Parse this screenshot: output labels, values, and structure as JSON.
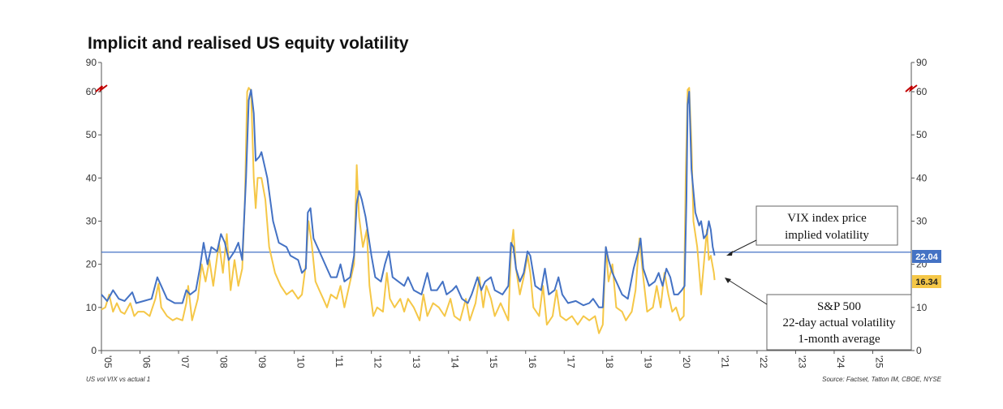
{
  "chart_data": {
    "type": "line",
    "title": "Implicit and realised US equity volatility",
    "footnote_left": "US vol VIX vs actual 1",
    "footnote_right": "Source: Factset, Tatton IM, CBOE, NYSE",
    "y_ticks": [
      "0",
      "10",
      "20",
      "30",
      "40",
      "50",
      "60",
      "90"
    ],
    "y_ticks_right": [
      "0",
      "10",
      "20",
      "30",
      "40",
      "50",
      "60",
      "90"
    ],
    "ylim": [
      0,
      90
    ],
    "y_axis_break_between": [
      60,
      90
    ],
    "x_ticks": [
      "'05",
      "'06",
      "'07",
      "'08",
      "'09",
      "'10",
      "'11",
      "'12",
      "'13",
      "'14",
      "'15",
      "'16",
      "'17",
      "'18",
      "'19",
      "'20",
      "'21",
      "'22",
      "'23",
      "'24",
      "'25"
    ],
    "xlim": [
      2005,
      2026
    ],
    "reference_line": {
      "value": 22.8,
      "color": "#4472C4"
    },
    "series": [
      {
        "name": "VIX index price implied volatility",
        "color": "#4472C4",
        "last_value_label": "22.04",
        "points": [
          [
            2005.0,
            13
          ],
          [
            2005.15,
            11.5
          ],
          [
            2005.3,
            14
          ],
          [
            2005.45,
            12
          ],
          [
            2005.6,
            11.5
          ],
          [
            2005.8,
            13.5
          ],
          [
            2005.9,
            11
          ],
          [
            2006.1,
            11.5
          ],
          [
            2006.3,
            12
          ],
          [
            2006.45,
            17
          ],
          [
            2006.55,
            15
          ],
          [
            2006.7,
            12
          ],
          [
            2006.9,
            11
          ],
          [
            2007.1,
            11
          ],
          [
            2007.2,
            14
          ],
          [
            2007.3,
            13
          ],
          [
            2007.45,
            14
          ],
          [
            2007.55,
            19
          ],
          [
            2007.65,
            25
          ],
          [
            2007.75,
            20
          ],
          [
            2007.85,
            24
          ],
          [
            2008.0,
            23
          ],
          [
            2008.1,
            27
          ],
          [
            2008.2,
            25
          ],
          [
            2008.3,
            21
          ],
          [
            2008.45,
            23
          ],
          [
            2008.55,
            25
          ],
          [
            2008.65,
            21
          ],
          [
            2008.75,
            40
          ],
          [
            2008.82,
            58
          ],
          [
            2008.88,
            62
          ],
          [
            2008.95,
            55
          ],
          [
            2009.0,
            44
          ],
          [
            2009.1,
            45
          ],
          [
            2009.15,
            46
          ],
          [
            2009.3,
            40
          ],
          [
            2009.45,
            30
          ],
          [
            2009.6,
            25
          ],
          [
            2009.8,
            24
          ],
          [
            2009.9,
            22
          ],
          [
            2010.1,
            21
          ],
          [
            2010.2,
            18
          ],
          [
            2010.3,
            19
          ],
          [
            2010.35,
            32
          ],
          [
            2010.42,
            33
          ],
          [
            2010.5,
            26
          ],
          [
            2010.6,
            24
          ],
          [
            2010.7,
            22
          ],
          [
            2010.85,
            19
          ],
          [
            2010.95,
            17
          ],
          [
            2011.1,
            17
          ],
          [
            2011.2,
            20
          ],
          [
            2011.3,
            16
          ],
          [
            2011.45,
            17
          ],
          [
            2011.55,
            22
          ],
          [
            2011.62,
            34
          ],
          [
            2011.68,
            37
          ],
          [
            2011.75,
            35
          ],
          [
            2011.85,
            31
          ],
          [
            2011.95,
            25
          ],
          [
            2012.0,
            22
          ],
          [
            2012.1,
            17
          ],
          [
            2012.25,
            16
          ],
          [
            2012.35,
            20
          ],
          [
            2012.45,
            23
          ],
          [
            2012.55,
            17
          ],
          [
            2012.7,
            16
          ],
          [
            2012.85,
            15
          ],
          [
            2012.95,
            17
          ],
          [
            2013.1,
            14
          ],
          [
            2013.3,
            13
          ],
          [
            2013.45,
            18
          ],
          [
            2013.55,
            14
          ],
          [
            2013.7,
            14
          ],
          [
            2013.85,
            16
          ],
          [
            2013.95,
            13
          ],
          [
            2014.1,
            14
          ],
          [
            2014.2,
            15
          ],
          [
            2014.35,
            12
          ],
          [
            2014.5,
            11
          ],
          [
            2014.6,
            13
          ],
          [
            2014.75,
            17
          ],
          [
            2014.85,
            14
          ],
          [
            2014.95,
            16
          ],
          [
            2015.1,
            17
          ],
          [
            2015.2,
            14
          ],
          [
            2015.4,
            13
          ],
          [
            2015.55,
            15
          ],
          [
            2015.62,
            25
          ],
          [
            2015.68,
            24
          ],
          [
            2015.75,
            19
          ],
          [
            2015.85,
            16
          ],
          [
            2015.95,
            18
          ],
          [
            2016.05,
            23
          ],
          [
            2016.12,
            22
          ],
          [
            2016.25,
            15
          ],
          [
            2016.4,
            14
          ],
          [
            2016.5,
            19
          ],
          [
            2016.6,
            13
          ],
          [
            2016.75,
            14
          ],
          [
            2016.85,
            17
          ],
          [
            2016.95,
            13
          ],
          [
            2017.1,
            11
          ],
          [
            2017.3,
            11.5
          ],
          [
            2017.5,
            10.5
          ],
          [
            2017.65,
            11
          ],
          [
            2017.75,
            12
          ],
          [
            2017.9,
            10
          ],
          [
            2018.0,
            10
          ],
          [
            2018.08,
            24
          ],
          [
            2018.15,
            21
          ],
          [
            2018.25,
            18
          ],
          [
            2018.35,
            16
          ],
          [
            2018.5,
            13
          ],
          [
            2018.65,
            12
          ],
          [
            2018.8,
            19
          ],
          [
            2018.92,
            23
          ],
          [
            2018.98,
            26
          ],
          [
            2019.05,
            19
          ],
          [
            2019.2,
            15
          ],
          [
            2019.35,
            16
          ],
          [
            2019.45,
            18
          ],
          [
            2019.55,
            15
          ],
          [
            2019.65,
            19
          ],
          [
            2019.75,
            17
          ],
          [
            2019.85,
            13
          ],
          [
            2019.95,
            13
          ],
          [
            2020.05,
            14
          ],
          [
            2020.12,
            15
          ],
          [
            2020.17,
            35
          ],
          [
            2020.2,
            57
          ],
          [
            2020.24,
            60
          ],
          [
            2020.3,
            42
          ],
          [
            2020.4,
            32
          ],
          [
            2020.5,
            29
          ],
          [
            2020.55,
            30
          ],
          [
            2020.62,
            26
          ],
          [
            2020.7,
            27
          ],
          [
            2020.75,
            30
          ],
          [
            2020.8,
            28
          ],
          [
            2020.85,
            24
          ],
          [
            2020.9,
            22.04
          ]
        ]
      },
      {
        "name": "S&P 500 22-day actual volatility 1-month average",
        "color": "#F5C747",
        "last_value_label": "16.34",
        "points": [
          [
            2005.0,
            9.5
          ],
          [
            2005.1,
            10
          ],
          [
            2005.2,
            13
          ],
          [
            2005.3,
            9
          ],
          [
            2005.4,
            11
          ],
          [
            2005.5,
            9
          ],
          [
            2005.6,
            8.5
          ],
          [
            2005.75,
            11
          ],
          [
            2005.85,
            8
          ],
          [
            2005.95,
            9
          ],
          [
            2006.1,
            9
          ],
          [
            2006.25,
            8
          ],
          [
            2006.4,
            12
          ],
          [
            2006.48,
            15.5
          ],
          [
            2006.55,
            10
          ],
          [
            2006.7,
            8
          ],
          [
            2006.85,
            7
          ],
          [
            2006.95,
            7.5
          ],
          [
            2007.1,
            7
          ],
          [
            2007.2,
            11
          ],
          [
            2007.25,
            15
          ],
          [
            2007.35,
            7
          ],
          [
            2007.5,
            12
          ],
          [
            2007.6,
            20
          ],
          [
            2007.7,
            16
          ],
          [
            2007.8,
            21
          ],
          [
            2007.9,
            15
          ],
          [
            2008.05,
            25
          ],
          [
            2008.15,
            18
          ],
          [
            2008.25,
            27
          ],
          [
            2008.35,
            14
          ],
          [
            2008.45,
            21
          ],
          [
            2008.55,
            15
          ],
          [
            2008.65,
            19
          ],
          [
            2008.72,
            35
          ],
          [
            2008.78,
            60
          ],
          [
            2008.82,
            64
          ],
          [
            2008.88,
            61
          ],
          [
            2008.95,
            40
          ],
          [
            2009.0,
            33
          ],
          [
            2009.05,
            40
          ],
          [
            2009.15,
            40
          ],
          [
            2009.25,
            35
          ],
          [
            2009.35,
            24
          ],
          [
            2009.5,
            18
          ],
          [
            2009.65,
            15
          ],
          [
            2009.8,
            13
          ],
          [
            2009.95,
            14
          ],
          [
            2010.1,
            12
          ],
          [
            2010.2,
            13
          ],
          [
            2010.3,
            20
          ],
          [
            2010.37,
            30
          ],
          [
            2010.45,
            25
          ],
          [
            2010.55,
            16
          ],
          [
            2010.65,
            14
          ],
          [
            2010.75,
            12
          ],
          [
            2010.85,
            10
          ],
          [
            2010.95,
            13
          ],
          [
            2011.1,
            12
          ],
          [
            2011.2,
            15
          ],
          [
            2011.3,
            10
          ],
          [
            2011.45,
            16
          ],
          [
            2011.55,
            20
          ],
          [
            2011.62,
            43
          ],
          [
            2011.68,
            31
          ],
          [
            2011.78,
            24
          ],
          [
            2011.88,
            28
          ],
          [
            2011.95,
            15
          ],
          [
            2012.05,
            8
          ],
          [
            2012.15,
            10
          ],
          [
            2012.3,
            9
          ],
          [
            2012.4,
            18
          ],
          [
            2012.48,
            12
          ],
          [
            2012.6,
            10
          ],
          [
            2012.75,
            12
          ],
          [
            2012.85,
            9
          ],
          [
            2012.95,
            12
          ],
          [
            2013.1,
            10
          ],
          [
            2013.25,
            7
          ],
          [
            2013.35,
            13
          ],
          [
            2013.45,
            8
          ],
          [
            2013.6,
            11
          ],
          [
            2013.75,
            10
          ],
          [
            2013.9,
            8
          ],
          [
            2014.05,
            12
          ],
          [
            2014.15,
            8
          ],
          [
            2014.3,
            7
          ],
          [
            2014.45,
            12
          ],
          [
            2014.55,
            7
          ],
          [
            2014.7,
            11
          ],
          [
            2014.8,
            17
          ],
          [
            2014.9,
            10
          ],
          [
            2014.98,
            15
          ],
          [
            2015.1,
            12
          ],
          [
            2015.2,
            8
          ],
          [
            2015.35,
            11
          ],
          [
            2015.55,
            7
          ],
          [
            2015.62,
            23
          ],
          [
            2015.68,
            28
          ],
          [
            2015.75,
            19
          ],
          [
            2015.85,
            13
          ],
          [
            2015.95,
            17
          ],
          [
            2016.05,
            22
          ],
          [
            2016.12,
            18
          ],
          [
            2016.2,
            10
          ],
          [
            2016.35,
            8
          ],
          [
            2016.45,
            15
          ],
          [
            2016.55,
            6
          ],
          [
            2016.7,
            8
          ],
          [
            2016.8,
            14
          ],
          [
            2016.9,
            8
          ],
          [
            2017.05,
            7
          ],
          [
            2017.2,
            8
          ],
          [
            2017.35,
            6
          ],
          [
            2017.5,
            8
          ],
          [
            2017.65,
            7
          ],
          [
            2017.8,
            8
          ],
          [
            2017.9,
            4
          ],
          [
            2018.0,
            6
          ],
          [
            2018.08,
            24
          ],
          [
            2018.15,
            16
          ],
          [
            2018.25,
            20
          ],
          [
            2018.35,
            10
          ],
          [
            2018.5,
            9
          ],
          [
            2018.6,
            7
          ],
          [
            2018.75,
            9
          ],
          [
            2018.85,
            14
          ],
          [
            2018.95,
            26
          ],
          [
            2019.05,
            17
          ],
          [
            2019.15,
            9
          ],
          [
            2019.3,
            10
          ],
          [
            2019.4,
            15
          ],
          [
            2019.5,
            10
          ],
          [
            2019.6,
            18
          ],
          [
            2019.7,
            13
          ],
          [
            2019.8,
            9
          ],
          [
            2019.9,
            10
          ],
          [
            2020.0,
            7
          ],
          [
            2020.1,
            8
          ],
          [
            2020.15,
            40
          ],
          [
            2020.2,
            62
          ],
          [
            2020.24,
            64
          ],
          [
            2020.3,
            48
          ],
          [
            2020.35,
            30
          ],
          [
            2020.45,
            24
          ],
          [
            2020.55,
            13
          ],
          [
            2020.62,
            20
          ],
          [
            2020.7,
            28
          ],
          [
            2020.75,
            21
          ],
          [
            2020.8,
            22
          ],
          [
            2020.88,
            18
          ],
          [
            2020.9,
            16.34
          ]
        ]
      }
    ],
    "annotations": [
      {
        "lines": [
          "VIX index price",
          "implied volatility"
        ]
      },
      {
        "lines": [
          "S&P 500",
          "22-day actual volatility",
          "1-month average"
        ]
      }
    ]
  }
}
